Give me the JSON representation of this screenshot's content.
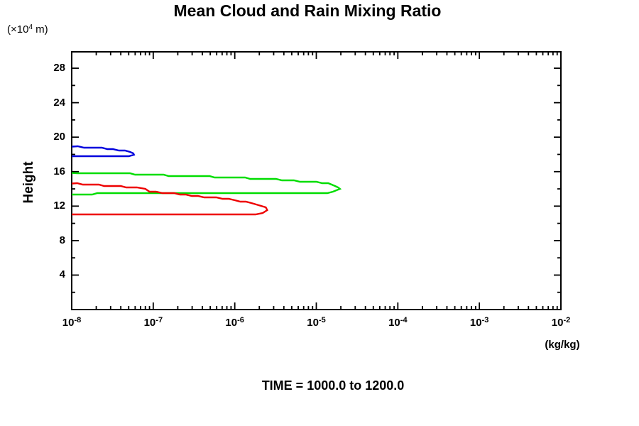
{
  "title": "Mean Cloud and Rain Mixing Ratio",
  "y_axis_unit": {
    "prefix": "(×10",
    "exp": "4",
    "suffix": " m)"
  },
  "y_axis_label": "Height",
  "x_axis_unit": "(kg/kg)",
  "footer": "TIME = 1000.0 to 1200.0",
  "chart_data": {
    "type": "line",
    "title": "Mean Cloud and Rain Mixing Ratio",
    "xlabel": "(kg/kg)",
    "ylabel": "Height (x10^4 m)",
    "x_scale": "log",
    "xlim_log10": [
      -8,
      -2
    ],
    "ylim": [
      0,
      29.9
    ],
    "grid": false,
    "legend": "none",
    "x_ticks": [
      {
        "base": "10",
        "exp": "-8"
      },
      {
        "base": "10",
        "exp": "-7"
      },
      {
        "base": "10",
        "exp": "-6"
      },
      {
        "base": "10",
        "exp": "-5"
      },
      {
        "base": "10",
        "exp": "-4"
      },
      {
        "base": "10",
        "exp": "-3"
      },
      {
        "base": "10",
        "exp": "-2"
      }
    ],
    "x_tick_decades": [
      -8,
      -7,
      -6,
      -5,
      -4,
      -3,
      -2
    ],
    "y_major_ticks": [
      4,
      8,
      12,
      16,
      20,
      24,
      28
    ],
    "y_minor_ticks": [
      2,
      6,
      10,
      14,
      18,
      22,
      26
    ],
    "frame_color": "#000000",
    "series": [
      {
        "name": "blue",
        "color": "#0000dd",
        "points_value_height": [
          [
            1e-08,
            18.9
          ],
          [
            2e-08,
            18.78
          ],
          [
            3.2e-08,
            18.6
          ],
          [
            4.5e-08,
            18.42
          ],
          [
            5.2e-08,
            18.25
          ],
          [
            5.7e-08,
            18.08
          ],
          [
            5.8e-08,
            17.95
          ],
          [
            5e-08,
            17.85
          ],
          [
            3e-08,
            17.82
          ],
          [
            1e-08,
            17.8
          ]
        ]
      },
      {
        "name": "green",
        "color": "#00dd00",
        "points_value_height": [
          [
            1e-08,
            15.85
          ],
          [
            2.5e-08,
            15.8
          ],
          [
            8e-08,
            15.7
          ],
          [
            1e-07,
            15.6
          ],
          [
            3.2e-07,
            15.48
          ],
          [
            1e-06,
            15.32
          ],
          [
            3.2e-06,
            15.08
          ],
          [
            6.3e-06,
            14.9
          ],
          [
            1e-05,
            14.75
          ],
          [
            1.4e-05,
            14.58
          ],
          [
            1.7e-05,
            14.4
          ],
          [
            1.85e-05,
            14.2
          ],
          [
            1.95e-05,
            13.95
          ],
          [
            1.6e-05,
            13.62
          ],
          [
            1e-05,
            13.52
          ],
          [
            3.2e-06,
            13.48
          ],
          [
            3.2e-07,
            13.45
          ],
          [
            1e-08,
            13.42
          ]
        ]
      },
      {
        "name": "red",
        "color": "#ee0000",
        "points_value_height": [
          [
            1e-08,
            14.62
          ],
          [
            1.6e-08,
            14.52
          ],
          [
            2.5e-08,
            14.4
          ],
          [
            4e-08,
            14.25
          ],
          [
            6.3e-08,
            14.1
          ],
          [
            8e-08,
            13.95
          ],
          [
            9e-08,
            13.75
          ],
          [
            1.3e-07,
            13.58
          ],
          [
            2.5e-07,
            13.32
          ],
          [
            5e-07,
            13.02
          ],
          [
            1e-06,
            12.7
          ],
          [
            1.6e-06,
            12.38
          ],
          [
            2.1e-06,
            12.05
          ],
          [
            2.4e-06,
            11.78
          ],
          [
            2.5e-06,
            11.52
          ],
          [
            2.2e-06,
            11.22
          ],
          [
            1.8e-06,
            11.1
          ],
          [
            6.3e-07,
            11.05
          ],
          [
            1e-07,
            11.02
          ],
          [
            1e-08,
            11.0
          ]
        ]
      }
    ]
  }
}
